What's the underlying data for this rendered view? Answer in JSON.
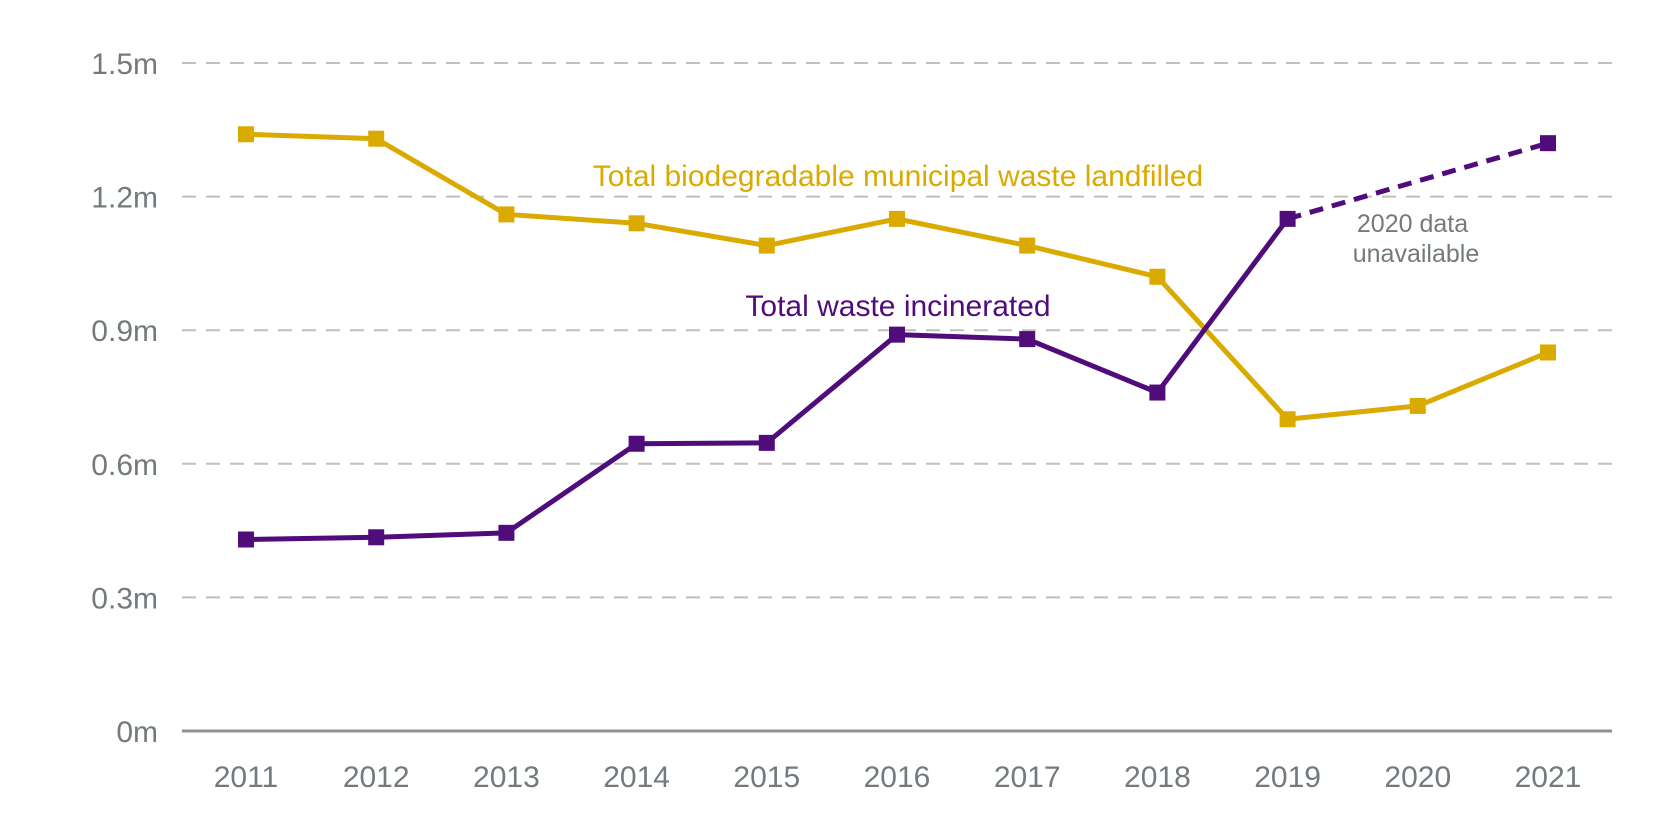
{
  "chart_data": {
    "type": "line",
    "title": "",
    "xlabel": "",
    "ylabel": "",
    "x": [
      "2011",
      "2012",
      "2013",
      "2014",
      "2015",
      "2016",
      "2017",
      "2018",
      "2019",
      "2020",
      "2021"
    ],
    "ylim": [
      0,
      1.5
    ],
    "yticks": [
      0,
      0.3,
      0.6,
      0.9,
      1.2,
      1.5
    ],
    "ytick_labels": [
      "0m",
      "0.3m",
      "0.6m",
      "0.9m",
      "1.2m",
      "1.5m"
    ],
    "grid": true,
    "legend": "inline labels",
    "series": [
      {
        "name": "Total biodegradable municipal waste landfilled",
        "color": "#daaa00",
        "values": [
          1.34,
          1.33,
          1.16,
          1.14,
          1.09,
          1.15,
          1.09,
          1.02,
          0.7,
          0.73,
          0.85
        ]
      },
      {
        "name": "Total waste incinerated",
        "color": "#4f0c7a",
        "values": [
          0.43,
          0.435,
          0.445,
          0.645,
          0.647,
          0.89,
          0.88,
          0.76,
          1.15,
          null,
          1.32
        ],
        "gap_style": "dashed"
      }
    ],
    "annotations": [
      {
        "text_lines": [
          "2020 data",
          "unavailable"
        ],
        "near": "2020, between 1.1m and 1.2m"
      }
    ]
  }
}
